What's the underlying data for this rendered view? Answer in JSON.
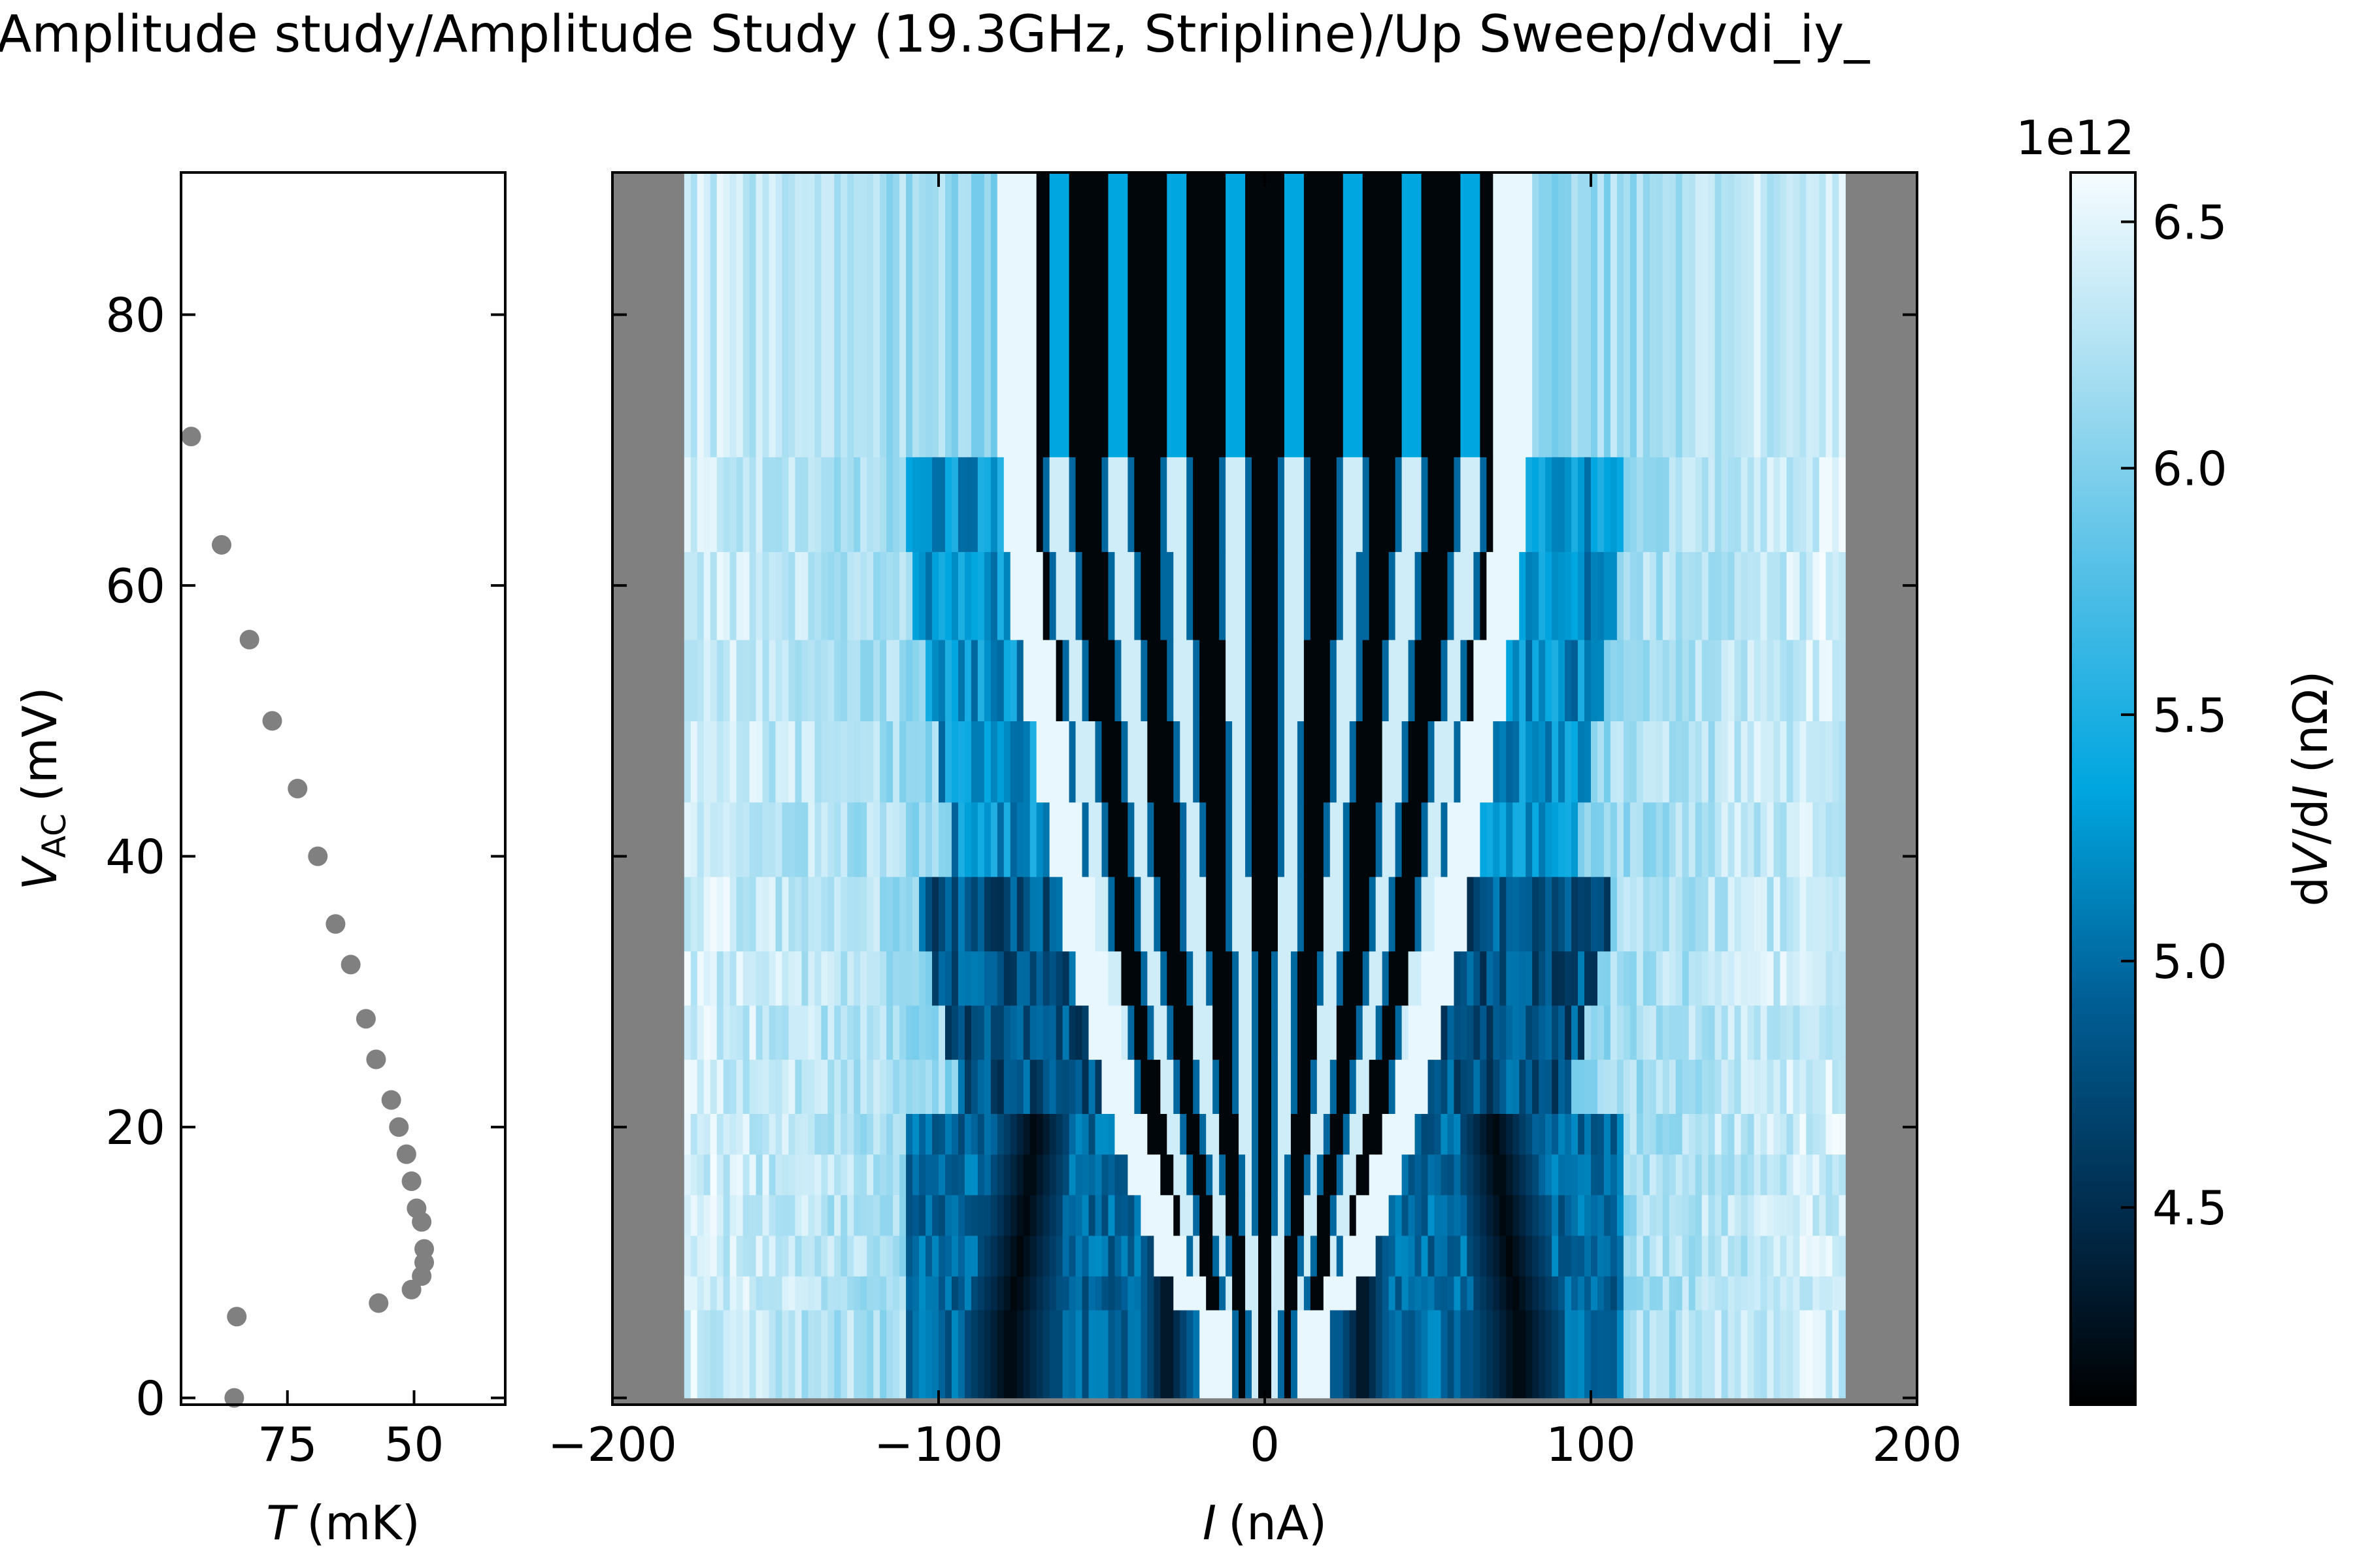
{
  "title": "Amplitude study/Amplitude Study (19.3GHz, Stripline)/Up Sweep/dvdi_iy_",
  "chart_data": [
    {
      "type": "scatter",
      "xlabel": {
        "var": "T",
        "unit": "(mK)"
      },
      "ylabel": {
        "var": "V",
        "sub": "AC",
        "unit": "(mV)"
      },
      "xlim": [
        96,
        32
      ],
      "ylim": [
        -0.5,
        90.5
      ],
      "xticks": [
        75,
        50
      ],
      "yticks": [
        0,
        20,
        40,
        60,
        80
      ],
      "marker_color": "#808080",
      "points": [
        {
          "t": 94,
          "v": 71
        },
        {
          "t": 88,
          "v": 63
        },
        {
          "t": 82.5,
          "v": 56
        },
        {
          "t": 78,
          "v": 50
        },
        {
          "t": 73,
          "v": 45
        },
        {
          "t": 69,
          "v": 40
        },
        {
          "t": 65.5,
          "v": 35
        },
        {
          "t": 62.5,
          "v": 32
        },
        {
          "t": 59.5,
          "v": 28
        },
        {
          "t": 57.5,
          "v": 25
        },
        {
          "t": 54.5,
          "v": 22
        },
        {
          "t": 53,
          "v": 20
        },
        {
          "t": 51.5,
          "v": 18
        },
        {
          "t": 50.5,
          "v": 16
        },
        {
          "t": 49.5,
          "v": 14
        },
        {
          "t": 48.5,
          "v": 13
        },
        {
          "t": 48,
          "v": 11
        },
        {
          "t": 48,
          "v": 10
        },
        {
          "t": 48.5,
          "v": 9
        },
        {
          "t": 50.5,
          "v": 8
        },
        {
          "t": 57,
          "v": 7
        },
        {
          "t": 85,
          "v": 6
        },
        {
          "t": 85.5,
          "v": 0
        }
      ]
    },
    {
      "type": "heatmap",
      "xlabel": {
        "var": "I",
        "unit": "(nA)"
      },
      "xlim": [
        -200,
        200
      ],
      "ylim": [
        -0.5,
        90.5
      ],
      "xticks": [
        -200,
        -100,
        0,
        100,
        200
      ],
      "xtick_labels": [
        "−200",
        "−100",
        "0",
        "100",
        "200"
      ],
      "yticks": [
        0,
        20,
        40,
        60,
        80
      ],
      "data_xrange": [
        -178,
        178
      ],
      "nodata_color": "#808080",
      "colormap": "black-blue-white",
      "row_bands_mV": [
        0,
        6.5,
        9,
        12,
        15,
        18,
        21,
        25,
        29,
        33,
        38.5,
        44,
        50,
        56,
        62.5,
        69.5,
        90.5
      ],
      "core_edge_nA": [
        10,
        18,
        24,
        28,
        32,
        36,
        40,
        44,
        48,
        52,
        56,
        60,
        64,
        68,
        70
      ],
      "colorbar": {
        "label": "dV/dI (nΩ)",
        "label_parts": {
          "prefix": "d",
          "var1": "V",
          "mid": "/d",
          "var2": "I",
          "unit": "(nΩ)"
        },
        "multiplier": "1e12",
        "range": [
          4.1,
          6.6
        ],
        "ticks": [
          4.5,
          5.0,
          5.5,
          6.0,
          6.5
        ],
        "tick_labels": [
          "4.5",
          "5.0",
          "5.5",
          "6.0",
          "6.5"
        ]
      }
    }
  ]
}
